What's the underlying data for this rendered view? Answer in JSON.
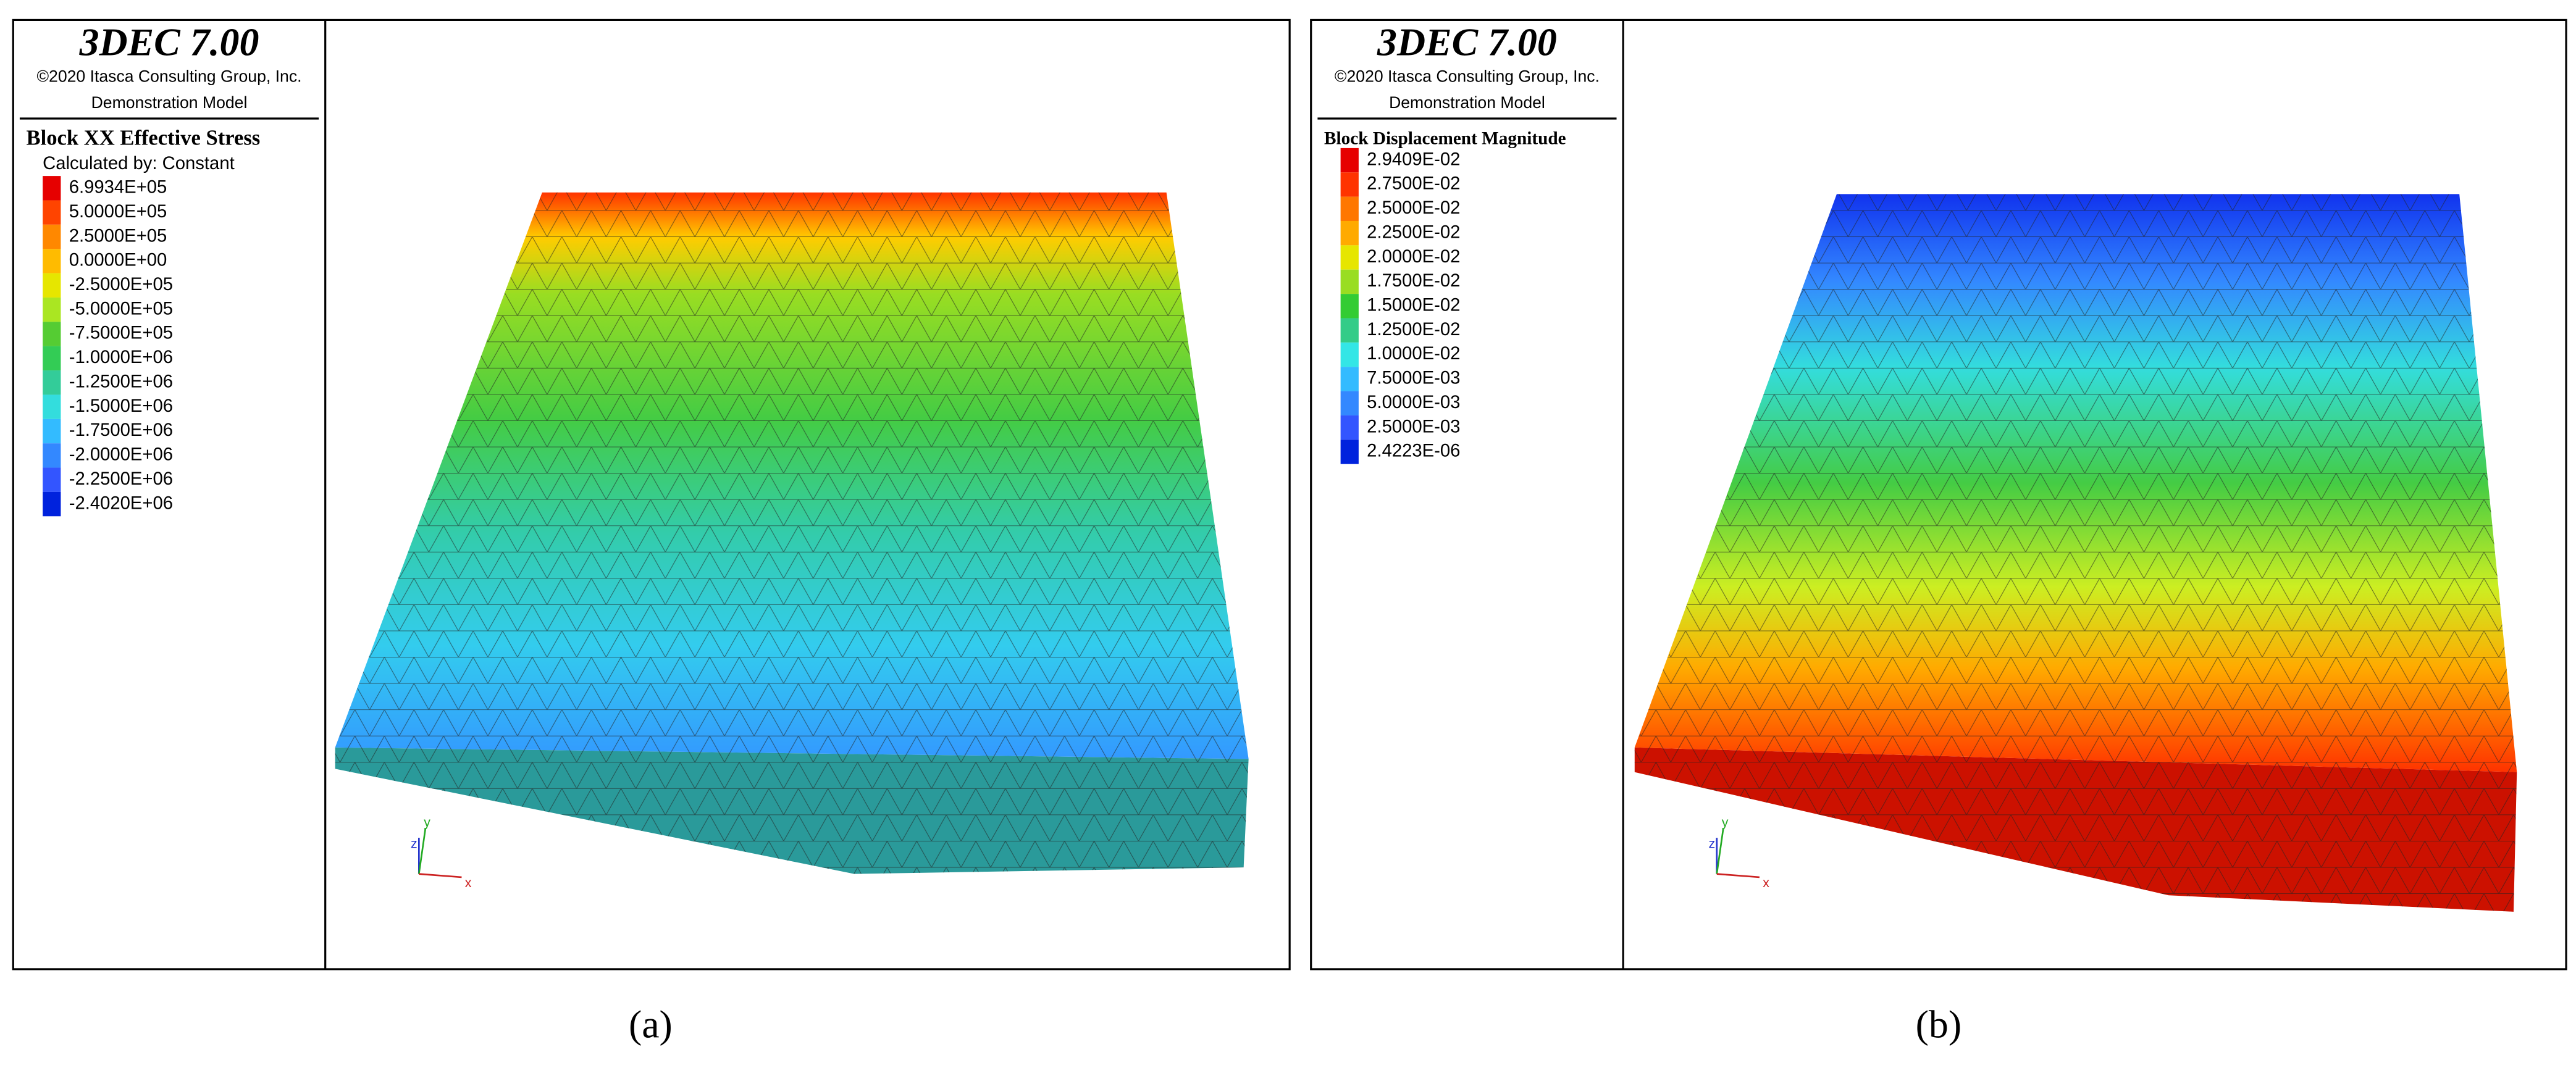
{
  "panels": [
    {
      "title": "3DEC 7.00",
      "copyright": "©2020 Itasca Consulting Group, Inc.",
      "model": "Demonstration Model",
      "legend": {
        "title": "Block XX Effective Stress",
        "subtitle": "Calculated by: Constant",
        "labels": [
          "6.9934E+05",
          "5.0000E+05",
          "2.5000E+05",
          "0.0000E+00",
          "-2.5000E+05",
          "-5.0000E+05",
          "-7.5000E+05",
          "-1.0000E+06",
          "-1.2500E+06",
          "-1.5000E+06",
          "-1.7500E+06",
          "-2.0000E+06",
          "-2.2500E+06",
          "-2.4020E+06"
        ],
        "colors": [
          "#e60000",
          "#ff4400",
          "#ff8800",
          "#ffbb00",
          "#e6e600",
          "#aae622",
          "#55cc33",
          "#33cc55",
          "#33cc99",
          "#33dddd",
          "#33bbff",
          "#3388ff",
          "#3355ff",
          "#0022dd"
        ]
      },
      "axes": [
        "z",
        "y",
        "x"
      ],
      "caption": "(a)"
    },
    {
      "title": "3DEC 7.00",
      "copyright": "©2020 Itasca Consulting Group, Inc.",
      "model": "Demonstration Model",
      "legend": {
        "title": "Block Displacement Magnitude",
        "labels": [
          "2.9409E-02",
          "2.7500E-02",
          "2.5000E-02",
          "2.2500E-02",
          "2.0000E-02",
          "1.7500E-02",
          "1.5000E-02",
          "1.2500E-02",
          "1.0000E-02",
          "7.5000E-03",
          "5.0000E-03",
          "2.5000E-03",
          "2.4223E-06"
        ],
        "colors": [
          "#e60000",
          "#ff3300",
          "#ff7700",
          "#ffaa00",
          "#e6e600",
          "#99dd22",
          "#33cc33",
          "#33cc88",
          "#33e6e6",
          "#33bbff",
          "#3388ff",
          "#3355ff",
          "#0022dd"
        ]
      },
      "axes": [
        "z",
        "y",
        "x"
      ],
      "caption": "(b)"
    }
  ]
}
